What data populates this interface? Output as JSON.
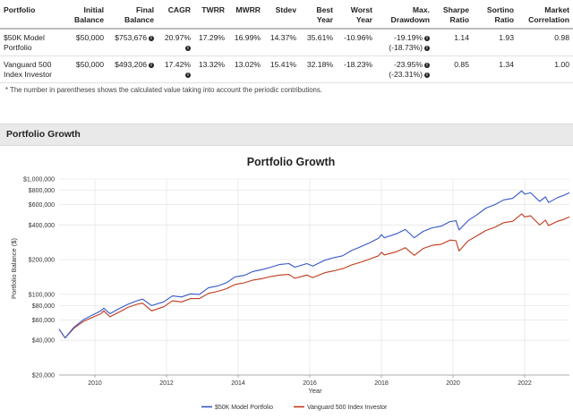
{
  "table": {
    "headers": [
      {
        "line1": "Portfolio",
        "line2": ""
      },
      {
        "line1": "Initial",
        "line2": "Balance"
      },
      {
        "line1": "Final",
        "line2": "Balance"
      },
      {
        "line1": "CAGR",
        "line2": ""
      },
      {
        "line1": "TWRR",
        "line2": ""
      },
      {
        "line1": "MWRR",
        "line2": ""
      },
      {
        "line1": "Stdev",
        "line2": ""
      },
      {
        "line1": "Best",
        "line2": "Year"
      },
      {
        "line1": "Worst",
        "line2": "Year"
      },
      {
        "line1": "Max.",
        "line2": "Drawdown"
      },
      {
        "line1": "Sharpe",
        "line2": "Ratio"
      },
      {
        "line1": "Sortino",
        "line2": "Ratio"
      },
      {
        "line1": "Market",
        "line2": "Correlation"
      }
    ],
    "rows": [
      {
        "portfolio_line1": "$50K Model",
        "portfolio_line2": "Portfolio",
        "initial_balance": "$50,000",
        "final_balance": "$753,676",
        "cagr": "20.97%",
        "twrr": "17.29%",
        "mwrr": "16.99%",
        "stdev": "14.37%",
        "best_year": "35.61%",
        "worst_year": "-10.96%",
        "max_drawdown": "-19.19%",
        "max_drawdown_contrib": "(-18.73%)",
        "sharpe": "1.14",
        "sortino": "1.93",
        "market_correlation": "0.98"
      },
      {
        "portfolio_line1": "Vanguard 500",
        "portfolio_line2": "Index Investor",
        "initial_balance": "$50,000",
        "final_balance": "$493,206",
        "cagr": "17.42%",
        "twrr": "13.32%",
        "mwrr": "13.02%",
        "stdev": "15.41%",
        "best_year": "32.18%",
        "worst_year": "-18.23%",
        "max_drawdown": "-23.95%",
        "max_drawdown_contrib": "(-23.31%)",
        "sharpe": "0.85",
        "sortino": "1.34",
        "market_correlation": "1.00"
      }
    ],
    "info_icon": "info-circle-icon",
    "footnote": "* The number in parentheses shows the calculated value taking into account the periodic contributions."
  },
  "section": {
    "title": "Portfolio Growth"
  },
  "chart_data": {
    "type": "line",
    "title": "Portfolio Growth",
    "xlabel": "Year",
    "ylabel": "Portfolio Balance ($)",
    "y_scale": "log",
    "ylim": [
      20000,
      1000000
    ],
    "xlim": [
      "2009-01",
      "2023-04"
    ],
    "y_ticks": [
      {
        "value": 20000,
        "label": "$20,000"
      },
      {
        "value": 40000,
        "label": "$40,000"
      },
      {
        "value": 60000,
        "label": "$60,000"
      },
      {
        "value": 80000,
        "label": "$80,000"
      },
      {
        "value": 100000,
        "label": "$100,000"
      },
      {
        "value": 200000,
        "label": "$200,000"
      },
      {
        "value": 400000,
        "label": "$400,000"
      },
      {
        "value": 600000,
        "label": "$600,000"
      },
      {
        "value": 800000,
        "label": "$800,000"
      },
      {
        "value": 1000000,
        "label": "$1,000,000"
      }
    ],
    "x_ticks": [
      "2010",
      "2012",
      "2014",
      "2016",
      "2018",
      "2020",
      "2022"
    ],
    "grid": true,
    "legend_position": "bottom",
    "series": [
      {
        "name": "$50K Model Portfolio",
        "color": "#3557c8",
        "points": [
          [
            "2009-01",
            50000
          ],
          [
            "2009-03",
            42000
          ],
          [
            "2009-06",
            52000
          ],
          [
            "2009-09",
            60000
          ],
          [
            "2009-12",
            66000
          ],
          [
            "2010-03",
            72000
          ],
          [
            "2010-04",
            76000
          ],
          [
            "2010-06",
            68000
          ],
          [
            "2010-09",
            75000
          ],
          [
            "2010-12",
            82000
          ],
          [
            "2011-03",
            88000
          ],
          [
            "2011-05",
            91000
          ],
          [
            "2011-08",
            80000
          ],
          [
            "2011-12",
            86000
          ],
          [
            "2012-03",
            97000
          ],
          [
            "2012-06",
            95000
          ],
          [
            "2012-09",
            101000
          ],
          [
            "2012-12",
            100000
          ],
          [
            "2013-03",
            114000
          ],
          [
            "2013-06",
            118000
          ],
          [
            "2013-09",
            126000
          ],
          [
            "2013-12",
            142000
          ],
          [
            "2014-03",
            146000
          ],
          [
            "2014-06",
            158000
          ],
          [
            "2014-09",
            164000
          ],
          [
            "2014-12",
            172000
          ],
          [
            "2015-03",
            182000
          ],
          [
            "2015-06",
            185000
          ],
          [
            "2015-08",
            172000
          ],
          [
            "2015-12",
            185000
          ],
          [
            "2016-02",
            176000
          ],
          [
            "2016-06",
            198000
          ],
          [
            "2016-09",
            208000
          ],
          [
            "2016-12",
            216000
          ],
          [
            "2017-03",
            240000
          ],
          [
            "2017-06",
            258000
          ],
          [
            "2017-09",
            280000
          ],
          [
            "2017-12",
            306000
          ],
          [
            "2018-01",
            330000
          ],
          [
            "2018-02",
            310000
          ],
          [
            "2018-06",
            335000
          ],
          [
            "2018-09",
            365000
          ],
          [
            "2018-12",
            310000
          ],
          [
            "2019-03",
            352000
          ],
          [
            "2019-06",
            378000
          ],
          [
            "2019-09",
            390000
          ],
          [
            "2019-12",
            428000
          ],
          [
            "2020-02",
            435000
          ],
          [
            "2020-03",
            362000
          ],
          [
            "2020-06",
            435000
          ],
          [
            "2020-09",
            490000
          ],
          [
            "2020-12",
            560000
          ],
          [
            "2021-03",
            600000
          ],
          [
            "2021-06",
            660000
          ],
          [
            "2021-09",
            680000
          ],
          [
            "2021-12",
            790000
          ],
          [
            "2022-01",
            740000
          ],
          [
            "2022-03",
            760000
          ],
          [
            "2022-06",
            640000
          ],
          [
            "2022-08",
            700000
          ],
          [
            "2022-09",
            625000
          ],
          [
            "2022-12",
            690000
          ],
          [
            "2023-02",
            720000
          ],
          [
            "2023-04",
            760000
          ]
        ]
      },
      {
        "name": "Vanguard 500 Index Investor",
        "color": "#c0391b",
        "points": [
          [
            "2009-01",
            50000
          ],
          [
            "2009-03",
            42000
          ],
          [
            "2009-06",
            51000
          ],
          [
            "2009-09",
            58000
          ],
          [
            "2009-12",
            63000
          ],
          [
            "2010-03",
            68000
          ],
          [
            "2010-04",
            72000
          ],
          [
            "2010-06",
            64000
          ],
          [
            "2010-09",
            70000
          ],
          [
            "2010-12",
            77000
          ],
          [
            "2011-03",
            82000
          ],
          [
            "2011-05",
            84000
          ],
          [
            "2011-08",
            72000
          ],
          [
            "2011-12",
            78000
          ],
          [
            "2012-03",
            88000
          ],
          [
            "2012-06",
            86000
          ],
          [
            "2012-09",
            92000
          ],
          [
            "2012-12",
            92000
          ],
          [
            "2013-03",
            102000
          ],
          [
            "2013-06",
            106000
          ],
          [
            "2013-09",
            112000
          ],
          [
            "2013-12",
            122000
          ],
          [
            "2014-03",
            126000
          ],
          [
            "2014-06",
            133000
          ],
          [
            "2014-09",
            137000
          ],
          [
            "2014-12",
            143000
          ],
          [
            "2015-03",
            147000
          ],
          [
            "2015-06",
            149000
          ],
          [
            "2015-08",
            138000
          ],
          [
            "2015-12",
            147000
          ],
          [
            "2016-02",
            140000
          ],
          [
            "2016-06",
            154000
          ],
          [
            "2016-09",
            160000
          ],
          [
            "2016-12",
            167000
          ],
          [
            "2017-03",
            180000
          ],
          [
            "2017-06",
            190000
          ],
          [
            "2017-09",
            202000
          ],
          [
            "2017-12",
            216000
          ],
          [
            "2018-01",
            232000
          ],
          [
            "2018-02",
            220000
          ],
          [
            "2018-06",
            234000
          ],
          [
            "2018-09",
            254000
          ],
          [
            "2018-12",
            218000
          ],
          [
            "2019-03",
            250000
          ],
          [
            "2019-06",
            266000
          ],
          [
            "2019-09",
            272000
          ],
          [
            "2019-12",
            296000
          ],
          [
            "2020-02",
            292000
          ],
          [
            "2020-03",
            238000
          ],
          [
            "2020-06",
            290000
          ],
          [
            "2020-09",
            322000
          ],
          [
            "2020-12",
            358000
          ],
          [
            "2021-03",
            382000
          ],
          [
            "2021-06",
            418000
          ],
          [
            "2021-09",
            430000
          ],
          [
            "2021-12",
            498000
          ],
          [
            "2022-01",
            470000
          ],
          [
            "2022-03",
            480000
          ],
          [
            "2022-06",
            400000
          ],
          [
            "2022-08",
            440000
          ],
          [
            "2022-09",
            395000
          ],
          [
            "2022-12",
            430000
          ],
          [
            "2023-02",
            445000
          ],
          [
            "2023-04",
            470000
          ]
        ]
      }
    ]
  }
}
